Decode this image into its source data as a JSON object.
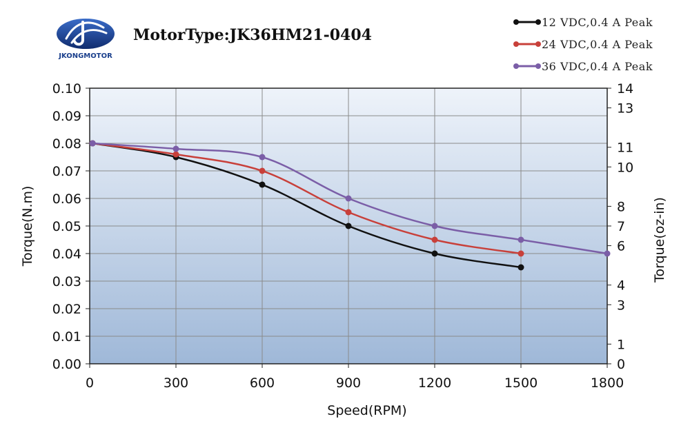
{
  "header": {
    "brand": "JKONGMOTOR",
    "title": "MotorType:JK36HM21-0404"
  },
  "colors": {
    "grid": "#8a8a8a",
    "plot_top": "#eef3fa",
    "plot_bottom": "#9fb8d8",
    "logo": "#1a3f8c"
  },
  "chart_data": {
    "type": "line",
    "title": "MotorType:JK36HM21-0404",
    "xlabel": "Speed(RPM)",
    "ylabel": "Torque(N.m)",
    "y2label": "Torque(oz-in)",
    "xlim": [
      0,
      1800
    ],
    "ylim": [
      0,
      0.1
    ],
    "y2lim": [
      0,
      14
    ],
    "xticks": [
      0,
      300,
      600,
      900,
      1200,
      1500,
      1800
    ],
    "xtick_labels": [
      "0",
      "300",
      "600",
      "900",
      "1200",
      "1500",
      "1800"
    ],
    "yticks": [
      0,
      0.01,
      0.02,
      0.03,
      0.04,
      0.05,
      0.06,
      0.07,
      0.08,
      0.09,
      0.1
    ],
    "ytick_labels": [
      "0.00",
      "0.01",
      "0.02",
      "0.03",
      "0.04",
      "0.05",
      "0.06",
      "0.07",
      "0.08",
      "0.09",
      "0.10"
    ],
    "y2ticks": [
      0,
      1,
      3,
      4,
      6,
      7,
      8,
      10,
      11,
      13,
      14
    ],
    "y2tick_labels": [
      "0",
      "1",
      "3",
      "4",
      "6",
      "7",
      "8",
      "10",
      "11",
      "13",
      "14"
    ],
    "grid": true,
    "legend_position": "top-right",
    "series": [
      {
        "name": "12 VDC,0.4 A Peak",
        "color": "#111111",
        "x": [
          10,
          300,
          600,
          900,
          1200,
          1500
        ],
        "y": [
          0.08,
          0.075,
          0.065,
          0.05,
          0.04,
          0.035
        ]
      },
      {
        "name": "24 VDC,0.4 A Peak",
        "color": "#c8403a",
        "x": [
          10,
          300,
          600,
          900,
          1200,
          1500
        ],
        "y": [
          0.08,
          0.076,
          0.07,
          0.055,
          0.045,
          0.04
        ]
      },
      {
        "name": "36 VDC,0.4 A Peak",
        "color": "#7b5ea7",
        "x": [
          10,
          300,
          600,
          900,
          1200,
          1500,
          1800
        ],
        "y": [
          0.08,
          0.078,
          0.075,
          0.06,
          0.05,
          0.045,
          0.04
        ]
      }
    ]
  }
}
